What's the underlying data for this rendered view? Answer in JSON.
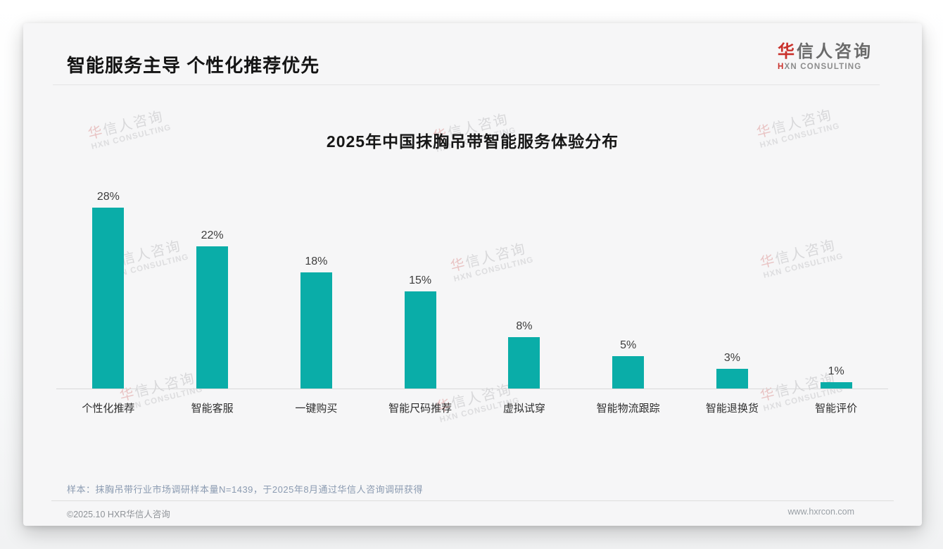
{
  "page_title": "智能服务主导 个性化推荐优先",
  "logo": {
    "main_first": "华",
    "main_rest": "信人咨询",
    "sub_first": "H",
    "sub_rest": "XN CONSULTING"
  },
  "watermark": {
    "line1_first": "华",
    "line1_rest": "信人咨询",
    "line2": "HXN CONSULTING"
  },
  "chart_data": {
    "type": "bar",
    "title": "2025年中国抹胸吊带智能服务体验分布",
    "categories": [
      "个性化推荐",
      "智能客服",
      "一键购买",
      "智能尺码推荐",
      "虚拟试穿",
      "智能物流跟踪",
      "智能退换货",
      "智能评价"
    ],
    "values": [
      28,
      22,
      18,
      15,
      8,
      5,
      3,
      1
    ],
    "value_suffix": "%",
    "bar_color": "#0aada8",
    "xlabel": "",
    "ylabel": "",
    "ylim": [
      0,
      30
    ],
    "grid": false,
    "legend": "none",
    "value_labels": "above-bars"
  },
  "sample_note": "样本：抹胸吊带行业市场调研样本量N=1439，于2025年8月通过华信人咨询调研获得",
  "footer": {
    "left": "©2025.10 HXR华信人咨询",
    "right": "www.hxrcon.com"
  },
  "colors": {
    "accent_teal": "#0aada8",
    "logo_red": "#c9312b",
    "note_blue_gray": "#8b9bb1"
  }
}
